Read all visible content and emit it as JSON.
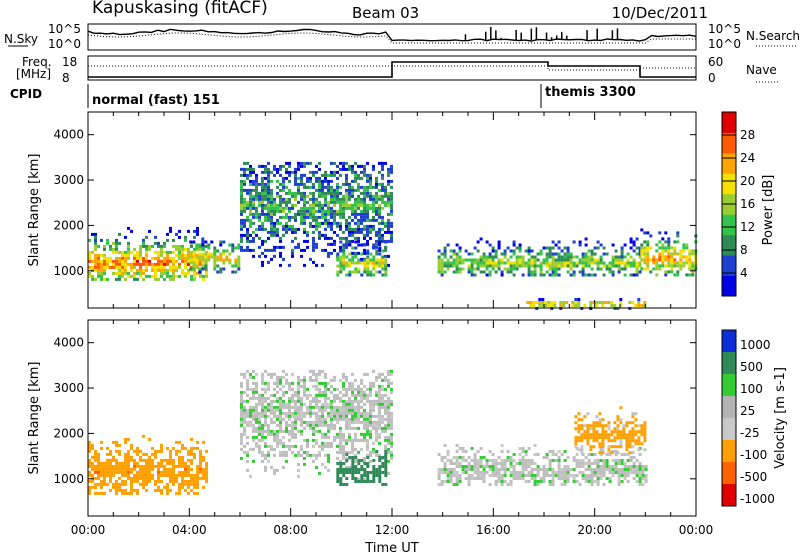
{
  "header": {
    "station": "Kapuskasing (fitACF)",
    "beam": "Beam 03",
    "date": "10/Dec/2011"
  },
  "top_panel": {
    "left_label": "N.Sky",
    "right_label": "N.Search",
    "axis_top": "10^5",
    "axis_bottom": "10^0",
    "right_axis_top": "10^5",
    "right_axis_bottom": "10^0"
  },
  "freq_panel": {
    "left_label_line1": "Freq.",
    "left_label_line2": "[MHz]",
    "right_label": "Nave",
    "left_ticks": [
      "18",
      "8"
    ],
    "right_ticks": [
      "60",
      "0"
    ]
  },
  "cpid": {
    "label": "CPID",
    "mode1": "normal (fast) 151",
    "mode2": "themis 3300"
  },
  "axes": {
    "ylabel": "Slant Range [km]",
    "xlabel": "Time UT",
    "x_ticks": [
      "00:00",
      "04:00",
      "08:00",
      "12:00",
      "16:00",
      "20:00",
      "00:00"
    ],
    "y_ticks": [
      "1000",
      "2000",
      "3000",
      "4000"
    ]
  },
  "colors": {
    "power_scale": [
      "#0000e6",
      "#1e3fd0",
      "#2e8b57",
      "#34c24a",
      "#9acd32",
      "#f5e000",
      "#ffa500",
      "#ff5a00",
      "#e00000"
    ],
    "velocity_scale": [
      "#0a2fd6",
      "#2e8b57",
      "#33cc33",
      "#b4b4b4",
      "#c8c8c8",
      "#ffa000",
      "#ff6000",
      "#e00000"
    ],
    "ground_scatter": "#bebebe"
  },
  "chart_data": [
    {
      "type": "heatmap",
      "title": "Power",
      "quantity": "Power",
      "unit": "dB",
      "colorbar_label": "Power [dB]",
      "colorbar_ticks": [
        "4",
        "8",
        "12",
        "16",
        "20",
        "24",
        "28"
      ],
      "colorbar_range": [
        0,
        32
      ],
      "xlabel": "Time UT",
      "ylabel": "Slant Range [km]",
      "x_ticks": [
        "00:00",
        "04:00",
        "08:00",
        "12:00",
        "16:00",
        "20:00",
        "00:00"
      ],
      "xlim_hours": [
        0,
        24
      ],
      "ylim_km": [
        180,
        4500
      ],
      "regions": [
        {
          "t0": 0.0,
          "t1": 4.7,
          "r0": 800,
          "r1": 2100,
          "core": 1200,
          "level": 22
        },
        {
          "t0": 4.0,
          "t1": 6.0,
          "r0": 1000,
          "r1": 1800,
          "core": 1300,
          "level": 18
        },
        {
          "t0": 6.0,
          "t1": 12.0,
          "r0": 900,
          "r1": 3400,
          "core": 2500,
          "level": 10
        },
        {
          "t0": 9.8,
          "t1": 11.8,
          "r0": 900,
          "r1": 1800,
          "core": 1200,
          "level": 16
        },
        {
          "t0": 13.8,
          "t1": 21.8,
          "r0": 900,
          "r1": 1800,
          "core": 1200,
          "level": 14
        },
        {
          "t0": 21.8,
          "t1": 24.0,
          "r0": 900,
          "r1": 2000,
          "core": 1300,
          "level": 20
        },
        {
          "t0": 17.3,
          "t1": 22.0,
          "r0": 200,
          "r1": 400,
          "core": 300,
          "level": 24
        }
      ]
    },
    {
      "type": "heatmap",
      "title": "Velocity",
      "quantity": "Velocity",
      "unit": "m s^-1",
      "colorbar_label": "Velocity [m s-1]",
      "colorbar_ticks": [
        "1000",
        "500",
        "100",
        "25",
        "-25",
        "-100",
        "-500",
        "-1000"
      ],
      "xlabel": "Time UT",
      "ylabel": "Slant Range [km]",
      "x_ticks": [
        "00:00",
        "04:00",
        "08:00",
        "12:00",
        "16:00",
        "20:00",
        "00:00"
      ],
      "xlim_hours": [
        0,
        24
      ],
      "ylim_km": [
        180,
        4500
      ],
      "regions": [
        {
          "t0": 0.0,
          "t1": 4.7,
          "r0": 700,
          "r1": 2100,
          "core": 1200,
          "velocity": -400
        },
        {
          "t0": 6.0,
          "t1": 12.0,
          "r0": 900,
          "r1": 3400,
          "core": 2500,
          "velocity": 0
        },
        {
          "t0": 9.8,
          "t1": 11.8,
          "r0": 900,
          "r1": 1700,
          "core": 1200,
          "velocity": 300
        },
        {
          "t0": 13.8,
          "t1": 22.0,
          "r0": 900,
          "r1": 1900,
          "core": 1200,
          "velocity": 0
        },
        {
          "t0": 19.2,
          "t1": 22.0,
          "r0": 1600,
          "r1": 2600,
          "core": 2000,
          "velocity": -200
        }
      ]
    }
  ]
}
